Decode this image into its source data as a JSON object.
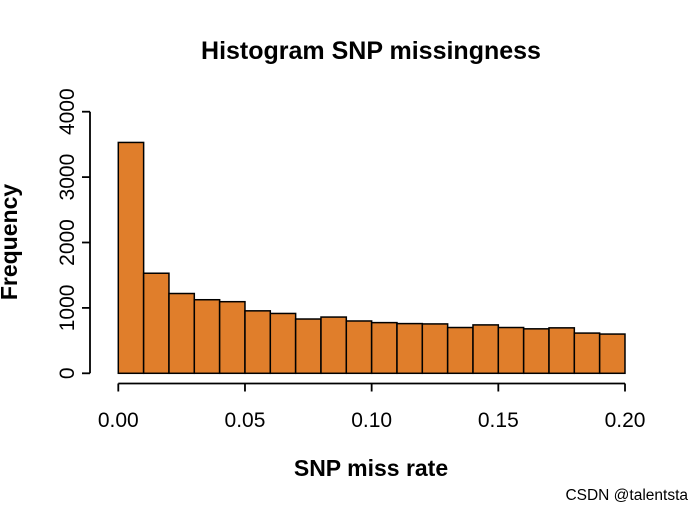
{
  "chart_data": {
    "type": "bar",
    "subtype": "histogram",
    "title": "Histogram SNP missingness",
    "xlabel": "SNP miss rate",
    "ylabel": "Frequency",
    "bin_start": 0,
    "bin_width": 0.01,
    "n_bins": 20,
    "frequencies": [
      3530,
      1530,
      1220,
      1125,
      1095,
      955,
      915,
      830,
      860,
      800,
      775,
      760,
      755,
      700,
      740,
      700,
      680,
      695,
      615,
      600
    ],
    "x_tick_labels": [
      "0.00",
      "0.05",
      "0.10",
      "0.15",
      "0.20"
    ],
    "x_tick_values": [
      0,
      0.05,
      0.1,
      0.15,
      0.2
    ],
    "y_tick_labels": [
      "0",
      "1000",
      "2000",
      "3000",
      "4000"
    ],
    "y_tick_values": [
      0,
      1000,
      2000,
      3000,
      4000
    ],
    "xlim": [
      0,
      0.2
    ],
    "ylim": [
      0,
      4000
    ],
    "grid": false,
    "legend": false,
    "bar_fill_color": "#E07E2B",
    "bar_border_color": "#000000",
    "axis_color": "#000000"
  },
  "watermark": {
    "text": "CSDN @talentsta",
    "color": "#C0C3C7"
  }
}
